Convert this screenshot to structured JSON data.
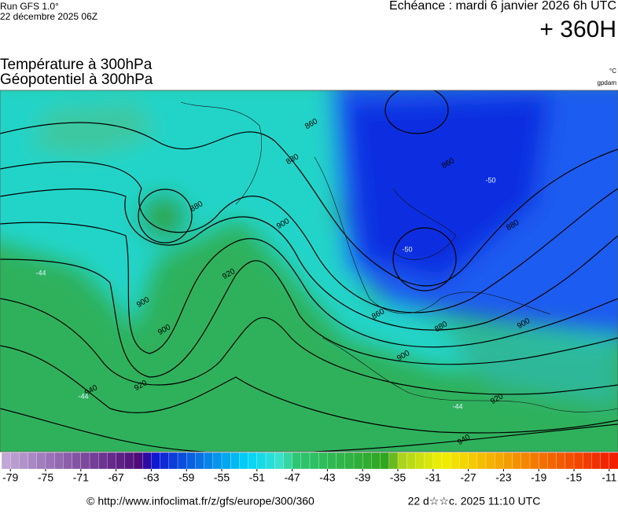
{
  "header": {
    "run": "Run GFS 1.0°",
    "run_date": "22 décembre 2025 06Z",
    "valid": "Echéance : mardi 6 janvier 2026 6h UTC",
    "lead": "+ 360H",
    "title1": "Température à 300hPa",
    "title2": "Géopotentiel à 300hPa",
    "unit1": "°C",
    "unit2": "gpdam"
  },
  "map": {
    "contour_labels": [
      "860",
      "880",
      "880",
      "900",
      "920",
      "900",
      "900",
      "920",
      "940",
      "860",
      "880",
      "900",
      "900",
      "920",
      "940",
      "880",
      "860",
      "-50",
      "-50",
      "-44",
      "-44",
      "-44"
    ]
  },
  "colorbar": {
    "lim": [
      -80,
      -10
    ],
    "stops": [
      {
        "value": -80,
        "color": "#c4acd8"
      },
      {
        "value": -64,
        "color": "#4a0676"
      },
      {
        "value": -63,
        "color": "#1010d0"
      },
      {
        "value": -52,
        "color": "#00d4f8"
      },
      {
        "value": -48,
        "color": "#40e4c8"
      },
      {
        "value": -47,
        "color": "#2ec878"
      },
      {
        "value": -36,
        "color": "#30a41c"
      },
      {
        "value": -35,
        "color": "#a4d020"
      },
      {
        "value": -30,
        "color": "#f0f000"
      },
      {
        "value": -26,
        "color": "#f4c400"
      },
      {
        "value": -20,
        "color": "#f48000"
      },
      {
        "value": -11,
        "color": "#f02000"
      }
    ],
    "ticks": [
      -79,
      -75,
      -71,
      -67,
      -63,
      -59,
      -55,
      -51,
      -47,
      -43,
      -39,
      -35,
      -31,
      -27,
      -23,
      -19,
      -15,
      -11
    ]
  },
  "footer": {
    "url": "© http://www.infoclimat.fr/z/gfs/europe/300/360",
    "generated": "22 d☆☆c. 2025 11:10 UTC"
  }
}
